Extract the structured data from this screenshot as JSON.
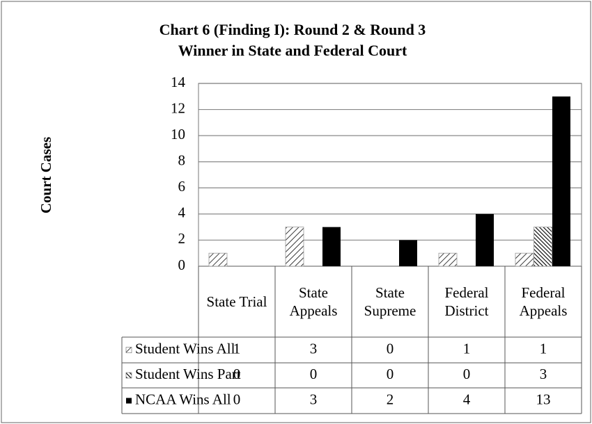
{
  "chart_data": {
    "type": "bar",
    "title": "Chart 6 (Finding I): Round 2 & Round 3 Winner in State and Federal Court",
    "y_label": "Court Cases",
    "categories": [
      "State Trial",
      "State Appeals",
      "State Supreme",
      "Federal District",
      "Federal Appeals"
    ],
    "series": [
      {
        "name": "Student Wins All",
        "color": "#000000",
        "pattern": "light-diagonal",
        "values": [
          1,
          3,
          0,
          1,
          1
        ]
      },
      {
        "name": "Student Wins Part",
        "color": "#000000",
        "pattern": "dense-diagonal",
        "values": [
          0,
          0,
          0,
          0,
          3
        ]
      },
      {
        "name": "NCAA Wins All",
        "color": "#000000",
        "pattern": "solid",
        "values": [
          0,
          3,
          2,
          4,
          13
        ]
      }
    ],
    "ylim": [
      0,
      14
    ],
    "yticks": [
      0,
      2,
      4,
      6,
      8,
      10,
      12,
      14
    ],
    "grid": true
  }
}
